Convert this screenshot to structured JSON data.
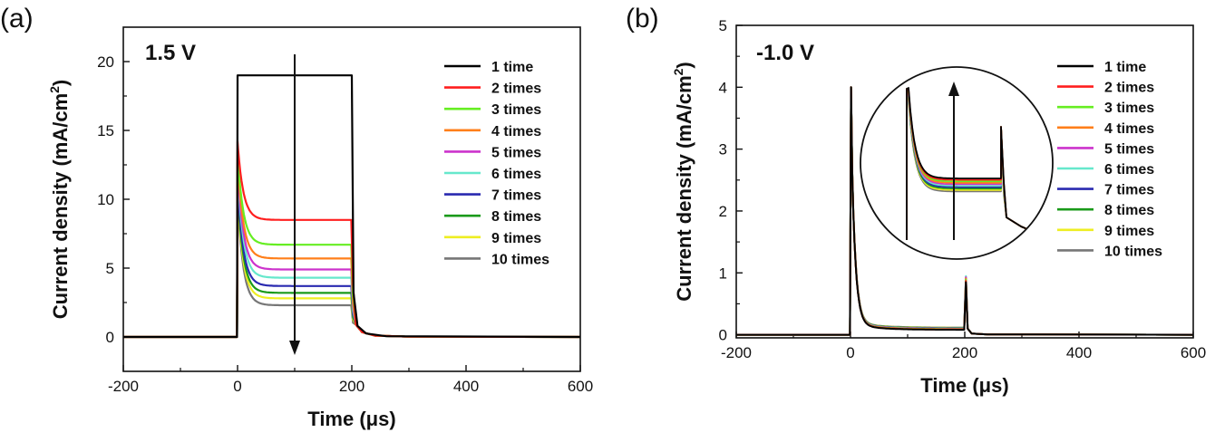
{
  "chart_data": [
    {
      "type": "line",
      "panel_label": "(a)",
      "condition_label": "1.5 V",
      "xlabel": "Time (μs)",
      "ylabel": "Current density (mA/cm²)",
      "xlim": [
        -200,
        600
      ],
      "ylim": [
        -2.5,
        22.5
      ],
      "xticks": [
        -200,
        0,
        200,
        400,
        600
      ],
      "yticks": [
        0,
        5,
        10,
        15,
        20
      ],
      "legend_position": "top-right",
      "annotation": "arrow-down",
      "series": [
        {
          "name": "1 time",
          "color": "#000000",
          "peak": 19.0,
          "plateau": 19.0
        },
        {
          "name": "2 times",
          "color": "#ff1f1f",
          "peak": 14.2,
          "plateau": 8.5
        },
        {
          "name": "3 times",
          "color": "#66ee22",
          "peak": 13.4,
          "plateau": 6.7
        },
        {
          "name": "4 times",
          "color": "#ff7f1a",
          "peak": 13.0,
          "plateau": 5.7
        },
        {
          "name": "5 times",
          "color": "#cc33cc",
          "peak": 12.6,
          "plateau": 4.9
        },
        {
          "name": "6 times",
          "color": "#66e8cc",
          "peak": 12.2,
          "plateau": 4.3
        },
        {
          "name": "7 times",
          "color": "#2a2ab0",
          "peak": 11.2,
          "plateau": 3.7
        },
        {
          "name": "8 times",
          "color": "#1a9a1a",
          "peak": 10.8,
          "plateau": 3.2
        },
        {
          "name": "9 times",
          "color": "#eeee22",
          "peak": 10.4,
          "plateau": 2.8
        },
        {
          "name": "10 times",
          "color": "#777777",
          "peak": 10.0,
          "plateau": 2.3
        }
      ]
    },
    {
      "type": "line",
      "panel_label": "(b)",
      "condition_label": "-1.0 V",
      "xlabel": "Time (μs)",
      "ylabel": "Current density (mA/cm²)",
      "xlim": [
        -200,
        600
      ],
      "ylim": [
        -0.05,
        5
      ],
      "xticks": [
        -200,
        0,
        200,
        400,
        600
      ],
      "yticks": [
        0,
        1,
        2,
        3,
        4,
        5
      ],
      "legend_position": "top-right",
      "annotation": "inset-zoom-arrow-up",
      "peak": 4.0,
      "second_peak": 0.95,
      "plateau": 0.1,
      "series": [
        {
          "name": "1 time",
          "color": "#000000"
        },
        {
          "name": "2 times",
          "color": "#ff1f1f"
        },
        {
          "name": "3 times",
          "color": "#66ee22"
        },
        {
          "name": "4 times",
          "color": "#ff7f1a"
        },
        {
          "name": "5 times",
          "color": "#cc33cc"
        },
        {
          "name": "6 times",
          "color": "#66e8cc"
        },
        {
          "name": "7 times",
          "color": "#2a2ab0"
        },
        {
          "name": "8 times",
          "color": "#1a9a1a"
        },
        {
          "name": "9 times",
          "color": "#eeee22"
        },
        {
          "name": "10 times",
          "color": "#777777"
        }
      ]
    }
  ]
}
